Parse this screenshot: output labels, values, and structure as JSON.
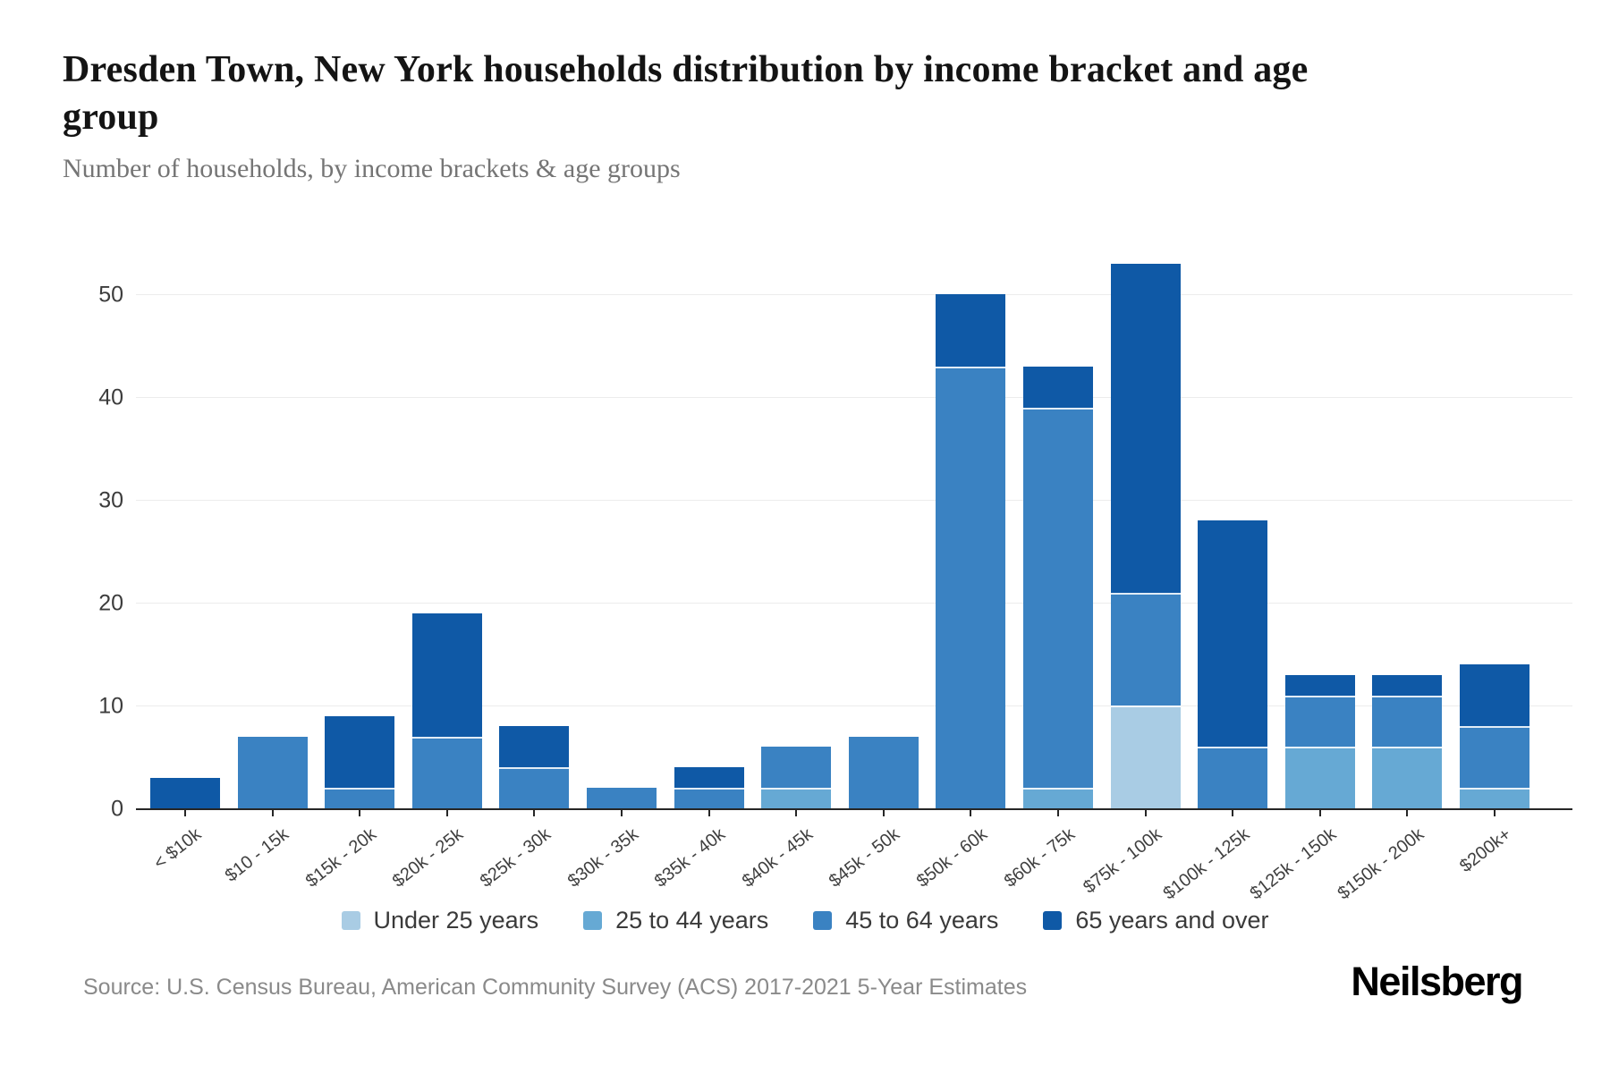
{
  "header": {
    "title": "Dresden Town, New York households distribution by income bracket and age group",
    "subtitle": "Number of households, by income brackets & age groups"
  },
  "chart_data": {
    "type": "bar",
    "stacked": true,
    "categories": [
      "< $10k",
      "$10 - 15k",
      "$15k - 20k",
      "$20k - 25k",
      "$25k - 30k",
      "$30k - 35k",
      "$35k - 40k",
      "$40k - 45k",
      "$45k - 50k",
      "$50k - 60k",
      "$60k - 75k",
      "$75k - 100k",
      "$100k - 125k",
      "$125k - 150k",
      "$150k - 200k",
      "$200k+"
    ],
    "series": [
      {
        "name": "Under 25 years",
        "color": "#a9cce4",
        "values": [
          0,
          0,
          0,
          0,
          0,
          0,
          0,
          0,
          0,
          0,
          0,
          10,
          0,
          0,
          0,
          0
        ]
      },
      {
        "name": "25 to 44 years",
        "color": "#66a9d4",
        "values": [
          0,
          0,
          0,
          0,
          0,
          0,
          0,
          2,
          0,
          0,
          2,
          0,
          0,
          6,
          6,
          2
        ]
      },
      {
        "name": "45 to 64 years",
        "color": "#3a82c2",
        "values": [
          0,
          7,
          2,
          7,
          4,
          2,
          2,
          4,
          7,
          43,
          37,
          11,
          6,
          5,
          5,
          6
        ]
      },
      {
        "name": "65 years and over",
        "color": "#0f59a6",
        "values": [
          3,
          0,
          7,
          12,
          4,
          0,
          2,
          0,
          0,
          7,
          4,
          32,
          22,
          2,
          2,
          6
        ]
      }
    ],
    "totals": [
      3,
      7,
      9,
      19,
      8,
      2,
      4,
      6,
      7,
      50,
      43,
      53,
      28,
      13,
      13,
      14
    ],
    "title": "Dresden Town, New York households distribution by income bracket and age group",
    "xlabel": "",
    "ylabel": "",
    "ylim": [
      0,
      54
    ],
    "yticks": [
      0,
      10,
      20,
      30,
      40,
      50
    ],
    "grid": true,
    "legend_position": "bottom"
  },
  "footer": {
    "source": "Source: U.S. Census Bureau, American Community Survey (ACS) 2017-2021 5-Year Estimates",
    "brand": "Neilsberg"
  }
}
